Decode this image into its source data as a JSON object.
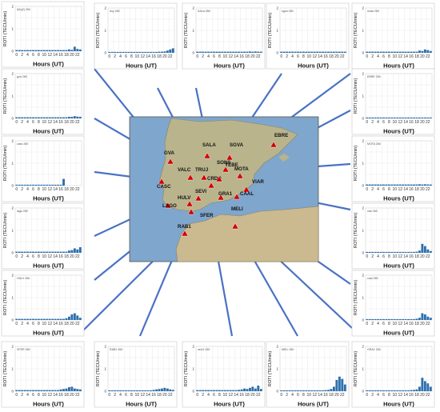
{
  "y_label": "ROTI (TECU/min)",
  "x_label": "Hours (UT)",
  "x_ticks": [
    "0",
    "2",
    "4",
    "6",
    "8",
    "10",
    "12",
    "14",
    "16",
    "18",
    "20",
    "22"
  ],
  "y_ticks": [
    "0",
    "1",
    "2"
  ],
  "colors": {
    "bar": "#2c6fae",
    "arrow": "#4a72c4",
    "marker": "#d10000",
    "sea": "#7fa6cc",
    "land": "#b9b48c",
    "africa": "#cbb98f"
  },
  "map": {
    "stations": [
      "GVA",
      "SALA",
      "SGVA",
      "EBRE",
      "VALC",
      "TRUJ",
      "SONS",
      "MOTA",
      "CASC",
      "CRDB",
      "YEBE",
      "VIAR",
      "HULV",
      "SEVI",
      "GRA1",
      "CAAL",
      "LAGO",
      "SFER",
      "MELI",
      "RAB1"
    ]
  },
  "chart_data": [
    {
      "type": "bar",
      "title": "lkfu(2) 260",
      "station": "lkfu",
      "ylim": [
        0,
        2
      ],
      "values": [
        0.05,
        0.05,
        0.05,
        0.05,
        0.05,
        0.05,
        0.05,
        0.05,
        0.05,
        0.05,
        0.05,
        0.05,
        0.05,
        0.05,
        0.05,
        0.05,
        0.05,
        0.05,
        0.05,
        0.08,
        0.06,
        0.2,
        0.1,
        0.08
      ]
    },
    {
      "type": "bar",
      "title": "bcy 260",
      "station": "bcy",
      "ylim": [
        0,
        2
      ],
      "values": [
        0.04,
        0.04,
        0.04,
        0.04,
        0.04,
        0.04,
        0.04,
        0.04,
        0.04,
        0.04,
        0.04,
        0.04,
        0.04,
        0.04,
        0.04,
        0.04,
        0.04,
        0.04,
        0.05,
        0.05,
        0.06,
        0.1,
        0.15,
        0.2
      ]
    },
    {
      "type": "bar",
      "title": "SALA 260",
      "station": "SALA",
      "ylim": [
        0,
        2
      ],
      "values": [
        0.05,
        0.05,
        0.05,
        0.05,
        0.05,
        0.05,
        0.05,
        0.05,
        0.05,
        0.05,
        0.05,
        0.05,
        0.05,
        0.05,
        0.05,
        0.05,
        0.05,
        0.05,
        0.05,
        0.06,
        0.05,
        0.06,
        0.05,
        0.05
      ]
    },
    {
      "type": "bar",
      "title": "sgva 260",
      "station": "SGVA",
      "ylim": [
        0,
        2
      ],
      "values": [
        0.05,
        0.05,
        0.05,
        0.05,
        0.05,
        0.05,
        0.05,
        0.05,
        0.05,
        0.05,
        0.05,
        0.05,
        0.05,
        0.05,
        0.05,
        0.05,
        0.05,
        0.05,
        0.05,
        0.05,
        0.05,
        0.05,
        0.05,
        0.05
      ]
    },
    {
      "type": "bar",
      "title": "mota 260",
      "station": "MOTA",
      "ylim": [
        0,
        2
      ],
      "values": [
        0.05,
        0.05,
        0.05,
        0.05,
        0.05,
        0.05,
        0.05,
        0.05,
        0.05,
        0.05,
        0.05,
        0.05,
        0.05,
        0.05,
        0.05,
        0.05,
        0.05,
        0.05,
        0.05,
        0.1,
        0.08,
        0.15,
        0.12,
        0.08
      ]
    },
    {
      "type": "bar",
      "title": "gva 260",
      "station": "GVA",
      "ylim": [
        0,
        2
      ],
      "values": [
        0.05,
        0.05,
        0.05,
        0.05,
        0.05,
        0.05,
        0.05,
        0.05,
        0.05,
        0.05,
        0.05,
        0.05,
        0.05,
        0.05,
        0.05,
        0.05,
        0.05,
        0.05,
        0.05,
        0.07,
        0.07,
        0.1,
        0.08,
        0.07
      ]
    },
    {
      "type": "bar",
      "title": "EBRE 260",
      "station": "EBRE",
      "ylim": [
        0,
        2
      ],
      "values": [
        0.04,
        0.04,
        0.04,
        0.04,
        0.04,
        0.04,
        0.04,
        0.04,
        0.04,
        0.04,
        0.04,
        0.04,
        0.04,
        0.04,
        0.04,
        0.04,
        0.04,
        0.04,
        0.04,
        0.04,
        0.04,
        0.04,
        0.04,
        0.04
      ]
    },
    {
      "type": "bar",
      "title": "casc 260",
      "station": "CASC",
      "ylim": [
        0,
        2
      ],
      "values": [
        0.04,
        0.04,
        0.04,
        0.04,
        0.04,
        0.04,
        0.04,
        0.04,
        0.04,
        0.04,
        0.04,
        0.04,
        0.04,
        0.04,
        0.04,
        0.04,
        0.04,
        0.3,
        0,
        0,
        0,
        0,
        0,
        0
      ]
    },
    {
      "type": "bar",
      "title": "MOTA 260",
      "station": "MOTA",
      "ylim": [
        0,
        2
      ],
      "values": [
        0.05,
        0.05,
        0.05,
        0.05,
        0.05,
        0.05,
        0.05,
        0.05,
        0.05,
        0.05,
        0.05,
        0.05,
        0.05,
        0.05,
        0.05,
        0.05,
        0.05,
        0.05,
        0.05,
        0.06,
        0.05,
        0.06,
        0.05,
        0.05
      ]
    },
    {
      "type": "bar",
      "title": "lago 260",
      "station": "LAGO",
      "ylim": [
        0,
        2
      ],
      "values": [
        0.05,
        0.05,
        0.05,
        0.05,
        0.05,
        0.05,
        0.05,
        0.05,
        0.05,
        0.05,
        0.05,
        0.05,
        0.05,
        0.05,
        0.05,
        0.05,
        0.05,
        0.05,
        0.05,
        0.1,
        0.12,
        0.2,
        0.15,
        0.25
      ]
    },
    {
      "type": "bar",
      "title": "viar 260",
      "station": "VIAR",
      "ylim": [
        0,
        2
      ],
      "values": [
        0.04,
        0.04,
        0.04,
        0.04,
        0.04,
        0.04,
        0.04,
        0.04,
        0.04,
        0.04,
        0.04,
        0.04,
        0.04,
        0.04,
        0.04,
        0.04,
        0.04,
        0.04,
        0.05,
        0.1,
        0.4,
        0.3,
        0.15,
        0.08
      ]
    },
    {
      "type": "bar",
      "title": "HULV 260",
      "station": "HULV",
      "ylim": [
        0,
        2
      ],
      "values": [
        0.05,
        0.05,
        0.05,
        0.05,
        0.05,
        0.05,
        0.05,
        0.05,
        0.05,
        0.05,
        0.05,
        0.05,
        0.05,
        0.05,
        0.05,
        0.05,
        0.05,
        0.05,
        0.08,
        0.15,
        0.25,
        0.3,
        0.2,
        0.1
      ]
    },
    {
      "type": "bar",
      "title": "caal 260",
      "station": "CAAL",
      "ylim": [
        0,
        2
      ],
      "values": [
        0.04,
        0.04,
        0.04,
        0.04,
        0.04,
        0.04,
        0.04,
        0.04,
        0.04,
        0.04,
        0.04,
        0.04,
        0.04,
        0.04,
        0.04,
        0.04,
        0.04,
        0.04,
        0.06,
        0.1,
        0.3,
        0.25,
        0.15,
        0.1
      ]
    },
    {
      "type": "bar",
      "title": "SFER 260",
      "station": "SFER",
      "ylim": [
        0,
        2
      ],
      "values": [
        0.05,
        0.05,
        0.05,
        0.05,
        0.05,
        0.05,
        0.05,
        0.05,
        0.05,
        0.05,
        0.05,
        0.05,
        0.05,
        0.05,
        0.05,
        0.05,
        0.08,
        0.1,
        0.12,
        0.18,
        0.2,
        0.12,
        0.1,
        0.08
      ]
    },
    {
      "type": "bar",
      "title": "RAB1 260",
      "station": "RAB1",
      "ylim": [
        0,
        2
      ],
      "values": [
        0.04,
        0.04,
        0.04,
        0.04,
        0.04,
        0.04,
        0.04,
        0.04,
        0.04,
        0.04,
        0.04,
        0.04,
        0.04,
        0.04,
        0.04,
        0.04,
        0.06,
        0.08,
        0.1,
        0.12,
        0.15,
        0.12,
        0.08,
        0.06
      ]
    },
    {
      "type": "bar",
      "title": "sevi1 260",
      "station": "SEVI",
      "ylim": [
        0,
        2
      ],
      "values": [
        0.05,
        0.05,
        0.05,
        0.05,
        0.05,
        0.05,
        0.05,
        0.05,
        0.05,
        0.05,
        0.05,
        0.05,
        0.05,
        0.05,
        0.05,
        0.06,
        0.08,
        0.12,
        0.1,
        0.15,
        0.2,
        0.12,
        0.25,
        0.1
      ]
    },
    {
      "type": "bar",
      "title": "MELI 260",
      "station": "MELI",
      "ylim": [
        0,
        2
      ],
      "values": [
        0.04,
        0.04,
        0.04,
        0.04,
        0.04,
        0.04,
        0.04,
        0.04,
        0.04,
        0.04,
        0.04,
        0.04,
        0.04,
        0.04,
        0.04,
        0.04,
        0.05,
        0.06,
        0.1,
        0.2,
        0.5,
        0.65,
        0.55,
        0.3
      ]
    },
    {
      "type": "bar",
      "title": "GRA1 260",
      "station": "GRA1",
      "ylim": [
        0,
        2
      ],
      "values": [
        0.04,
        0.04,
        0.04,
        0.04,
        0.04,
        0.04,
        0.04,
        0.04,
        0.04,
        0.04,
        0.04,
        0.04,
        0.04,
        0.04,
        0.04,
        0.04,
        0.05,
        0.06,
        0.08,
        0.2,
        0.6,
        0.45,
        0.35,
        0.2
      ]
    }
  ]
}
